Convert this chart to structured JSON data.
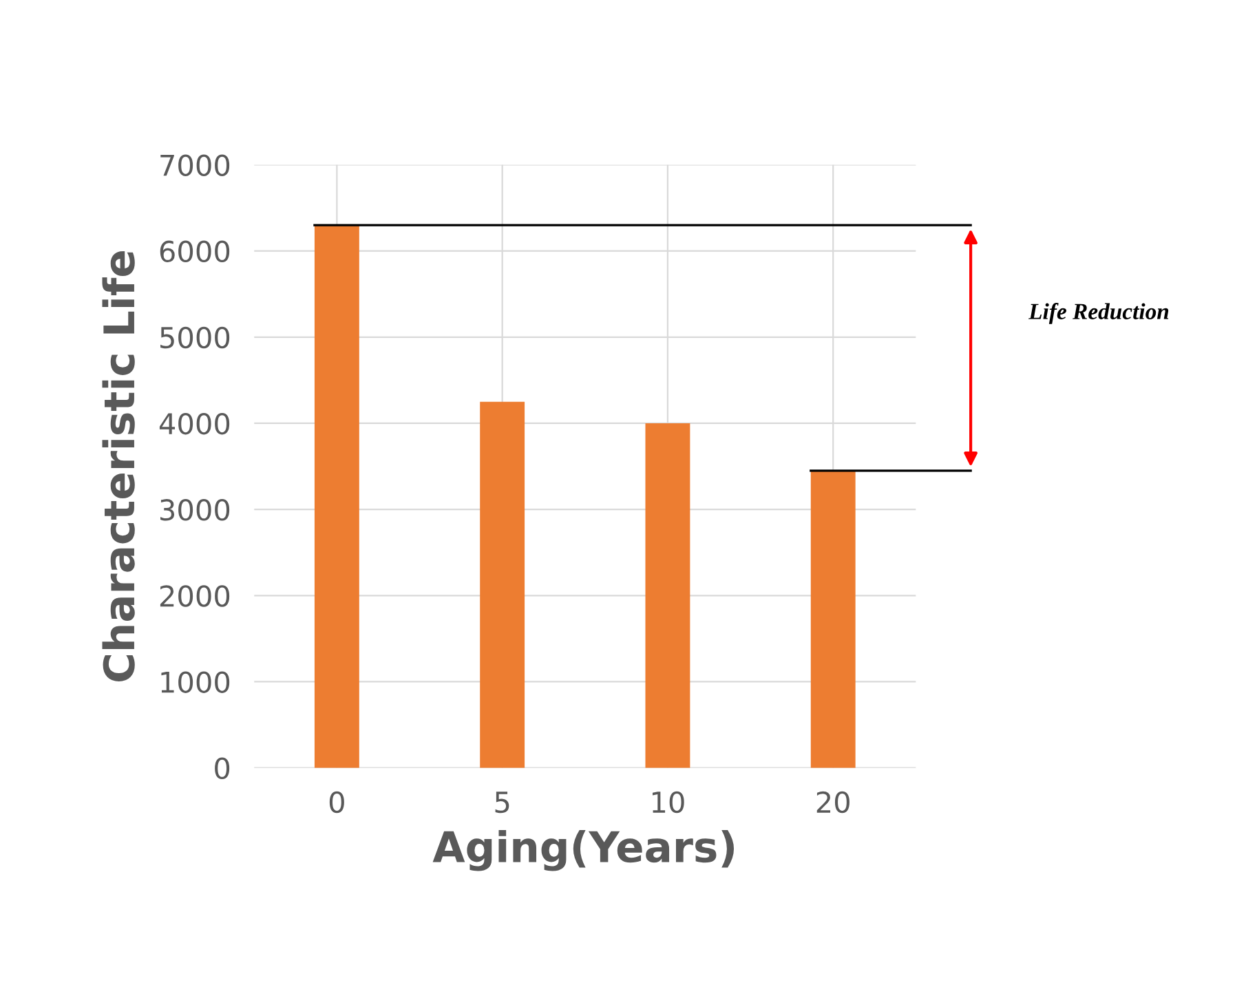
{
  "chart_data": {
    "type": "bar",
    "xlabel": "Aging(Years)",
    "ylabel": "Characteristic Life",
    "categories": [
      "0",
      "5",
      "10",
      "20"
    ],
    "values": [
      6300,
      4250,
      4000,
      3450
    ],
    "color": "#ed7d31",
    "ylim": [
      0,
      7000
    ],
    "yticks": [
      0,
      1000,
      2000,
      3000,
      4000,
      5000,
      6000,
      7000
    ],
    "grid": true,
    "ref_lines": [
      {
        "axis": "y",
        "value": 6300,
        "color": "#000000"
      },
      {
        "axis": "y",
        "value": 3450,
        "color": "#000000"
      }
    ],
    "annotations": [
      "Life Reduction"
    ]
  }
}
